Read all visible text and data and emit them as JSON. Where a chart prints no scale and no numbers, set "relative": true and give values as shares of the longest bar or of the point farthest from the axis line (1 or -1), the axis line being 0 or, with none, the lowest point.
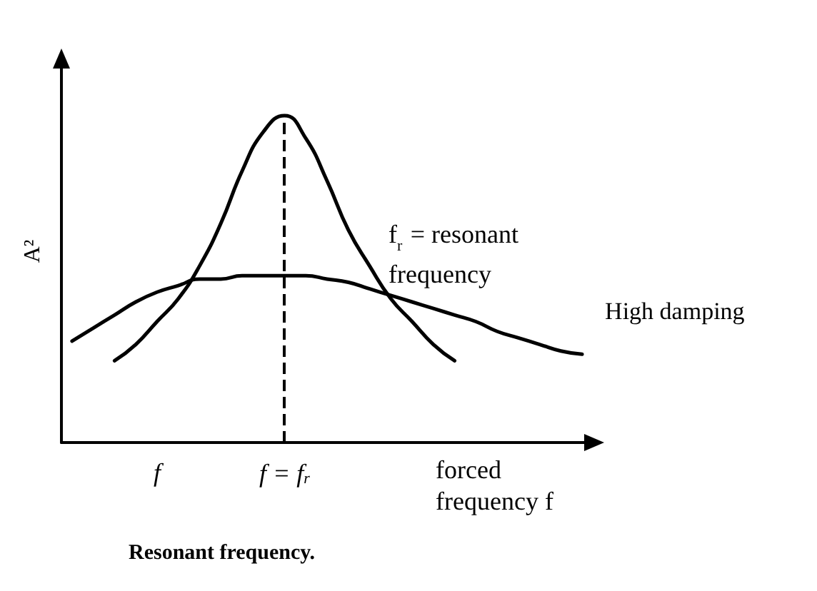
{
  "chart_data": {
    "type": "line",
    "title": "Resonant frequency.",
    "ylabel": "A²",
    "xlabel": "forced frequency f",
    "relative": true,
    "annotations": [
      "f$_{r}$ = resonant frequency"
    ],
    "categories": [
      null,
      null,
      null,
      null,
      "f",
      null,
      null,
      null,
      null,
      null,
      "f = f$_{r}$",
      null,
      null,
      null,
      null,
      null,
      null,
      null,
      null,
      null,
      null,
      null,
      null,
      null,
      null
    ],
    "series": [
      {
        "color": "#000000",
        "values": [
          null,
          null,
          0.25,
          0.3,
          0.37,
          0.44,
          0.54,
          0.67,
          0.83,
          0.95,
          1,
          0.93,
          0.8,
          0.65,
          0.54,
          0.44,
          0.37,
          0.3,
          0.25,
          null,
          null,
          null,
          null,
          null,
          null
        ]
      },
      {
        "name": "High damping",
        "color": "#000000",
        "values": [
          0.31,
          0.35,
          0.39,
          0.43,
          0.46,
          0.48,
          0.5,
          0.5,
          0.51,
          0.51,
          0.51,
          0.51,
          0.5,
          0.49,
          0.47,
          0.45,
          0.43,
          0.41,
          0.39,
          0.37,
          0.34,
          0.32,
          0.3,
          0.28,
          0.27
        ]
      }
    ],
    "ref_lines": [
      {
        "axis": "x",
        "value": "f = f$_{r}$",
        "line_style": "dashed",
        "color": "#000000"
      }
    ],
    "grid": false,
    "legend": false,
    "marker": "none",
    "line_style": "solid"
  }
}
